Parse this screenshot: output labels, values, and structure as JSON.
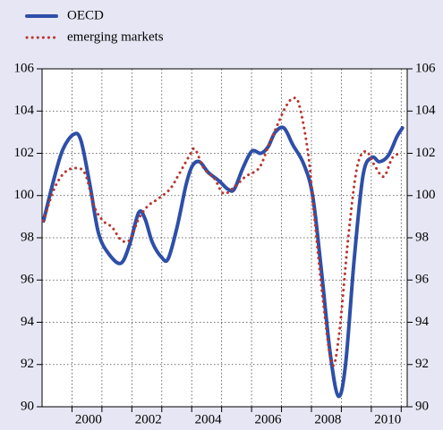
{
  "chart_data": {
    "type": "line",
    "series": [
      {
        "name": "OECD",
        "color": "#2e4fa8",
        "style": "solid",
        "x": [
          1999.05,
          1999.4,
          1999.7,
          2000.06,
          2000.3,
          2000.6,
          2000.89,
          2001.25,
          2001.64,
          2001.93,
          2002.23,
          2002.44,
          2002.68,
          2002.98,
          2003.21,
          2003.51,
          2003.81,
          2004.02,
          2004.26,
          2004.55,
          2004.91,
          2005.21,
          2005.42,
          2005.71,
          2006.01,
          2006.31,
          2006.55,
          2006.79,
          2007.08,
          2007.38,
          2007.74,
          2008.04,
          2008.33,
          2008.63,
          2008.9,
          2009.14,
          2009.43,
          2009.73,
          2010.03,
          2010.27,
          2010.57,
          2010.86,
          2011.04
        ],
        "values": [
          98.8,
          100.8,
          102.2,
          102.9,
          102.6,
          100.5,
          98.2,
          97.2,
          96.8,
          97.7,
          99.2,
          98.9,
          97.8,
          97.1,
          97.0,
          98.5,
          100.5,
          101.4,
          101.6,
          101.1,
          100.7,
          100.3,
          100.3,
          101.3,
          102.1,
          102.0,
          102.3,
          103.0,
          103.2,
          102.4,
          101.5,
          100.0,
          96.5,
          92.5,
          90.5,
          92.0,
          97.0,
          101.0,
          101.8,
          101.6,
          101.9,
          102.8,
          103.2
        ]
      },
      {
        "name": "emerging markets",
        "color": "#b8352f",
        "style": "dotted",
        "x": [
          1999.05,
          1999.4,
          1999.76,
          2000.15,
          2000.45,
          2000.74,
          2001.04,
          2001.34,
          2001.64,
          2001.93,
          2002.23,
          2002.53,
          2002.83,
          2003.27,
          2003.57,
          2003.93,
          2004.11,
          2004.4,
          2004.76,
          2005.06,
          2005.42,
          2005.8,
          2006.25,
          2006.55,
          2006.85,
          2007.14,
          2007.38,
          2007.59,
          2007.89,
          2008.1,
          2008.39,
          2008.69,
          2008.93,
          2009.23,
          2009.52,
          2009.82,
          2010.12,
          2010.42,
          2010.71,
          2011.01
        ],
        "values": [
          98.8,
          100.3,
          101.1,
          101.3,
          101.0,
          99.5,
          98.8,
          98.5,
          97.9,
          97.9,
          98.9,
          99.5,
          99.8,
          100.3,
          101.0,
          101.9,
          102.2,
          101.3,
          100.8,
          100.1,
          100.4,
          100.9,
          101.3,
          102.3,
          103.3,
          104.2,
          104.6,
          104.3,
          102.0,
          99.0,
          95.0,
          92.0,
          93.5,
          98.0,
          101.3,
          102.1,
          101.4,
          100.9,
          101.8,
          102.0
        ]
      }
    ],
    "xlim": [
      1999,
      2011.2
    ],
    "xticks": [
      2000,
      2002,
      2004,
      2006,
      2008,
      2010
    ],
    "minor_xticks": [
      2001,
      2003,
      2005,
      2007,
      2009,
      2011
    ],
    "ylim": [
      90,
      106
    ],
    "yticks": [
      90,
      92,
      94,
      96,
      98,
      100,
      102,
      104,
      106
    ],
    "y2lim": [
      90,
      106
    ],
    "y2ticks": [
      90,
      92,
      94,
      96,
      98,
      100,
      102,
      104,
      106
    ],
    "grid": true,
    "legend": "top-left"
  }
}
